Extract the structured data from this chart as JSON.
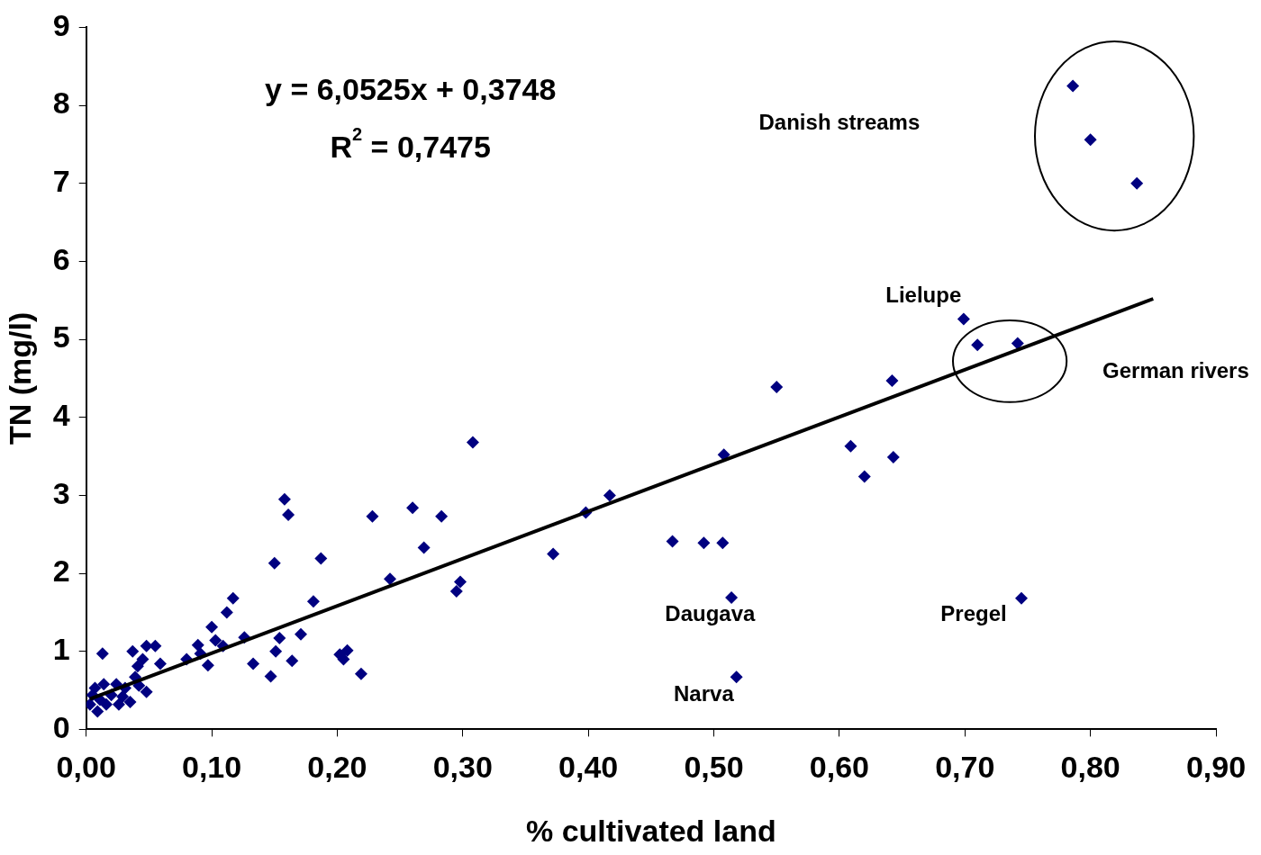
{
  "chart_data": {
    "type": "scatter",
    "xlabel": "% cultivated land",
    "ylabel": "TN (mg/l)",
    "xlim": [
      0,
      0.9
    ],
    "ylim": [
      0,
      9
    ],
    "xticks": [
      {
        "value": 0,
        "label": "0,00"
      },
      {
        "value": 0.1,
        "label": "0,10"
      },
      {
        "value": 0.2,
        "label": "0,20"
      },
      {
        "value": 0.3,
        "label": "0,30"
      },
      {
        "value": 0.4,
        "label": "0,40"
      },
      {
        "value": 0.5,
        "label": "0,50"
      },
      {
        "value": 0.6,
        "label": "0,60"
      },
      {
        "value": 0.7,
        "label": "0,70"
      },
      {
        "value": 0.8,
        "label": "0,80"
      },
      {
        "value": 0.9,
        "label": "0,90"
      }
    ],
    "yticks": [
      0,
      1,
      2,
      3,
      4,
      5,
      6,
      7,
      8,
      9
    ],
    "grid": false,
    "legend": false,
    "series": [
      {
        "type": "scatter",
        "color": "#000080",
        "marker": "diamond",
        "x": [
          0.003,
          0.005,
          0.007,
          0.009,
          0.013,
          0.011,
          0.014,
          0.016,
          0.02,
          0.024,
          0.026,
          0.029,
          0.031,
          0.035,
          0.037,
          0.039,
          0.041,
          0.042,
          0.045,
          0.048,
          0.048,
          0.055,
          0.059,
          0.08,
          0.089,
          0.091,
          0.097,
          0.1,
          0.103,
          0.109,
          0.112,
          0.117,
          0.126,
          0.133,
          0.147,
          0.15,
          0.151,
          0.154,
          0.158,
          0.161,
          0.164,
          0.171,
          0.181,
          0.187,
          0.202,
          0.205,
          0.208,
          0.219,
          0.228,
          0.242,
          0.26,
          0.269,
          0.283,
          0.295,
          0.298,
          0.308,
          0.372,
          0.398,
          0.417,
          0.467,
          0.492,
          0.507,
          0.508,
          0.514,
          0.518,
          0.55,
          0.609,
          0.62,
          0.642,
          0.643,
          0.699,
          0.71,
          0.742,
          0.745,
          0.786,
          0.8,
          0.837
        ],
        "values": [
          0.32,
          0.44,
          0.53,
          0.23,
          0.97,
          0.38,
          0.58,
          0.32,
          0.44,
          0.58,
          0.32,
          0.42,
          0.53,
          0.35,
          1.0,
          0.67,
          0.81,
          0.56,
          0.9,
          1.07,
          0.48,
          1.07,
          0.84,
          0.9,
          1.08,
          0.97,
          0.82,
          1.31,
          1.14,
          1.07,
          1.5,
          1.68,
          1.18,
          0.84,
          0.68,
          2.13,
          1.0,
          1.17,
          2.95,
          2.75,
          0.88,
          1.22,
          1.64,
          2.19,
          0.96,
          0.9,
          1.01,
          0.71,
          2.73,
          1.93,
          2.84,
          2.33,
          2.73,
          1.77,
          1.89,
          3.68,
          2.25,
          2.78,
          3.0,
          2.41,
          2.39,
          2.39,
          3.52,
          1.69,
          0.67,
          4.39,
          3.63,
          3.24,
          4.47,
          3.49,
          5.26,
          4.93,
          4.95,
          1.68,
          8.25,
          7.56,
          7.0
        ]
      },
      {
        "type": "line",
        "color": "#000000",
        "marker": "none",
        "line_style": "solid",
        "x": [
          0.003,
          0.85
        ],
        "values": [
          0.39,
          5.52
        ]
      }
    ],
    "annotations": [
      "y = 6,0525x + 0,3748",
      "R$^{2}$ = 0,7475",
      "Danish streams",
      "Lielupe",
      "German rivers",
      "Daugava",
      "Pregel",
      "Narva"
    ]
  }
}
